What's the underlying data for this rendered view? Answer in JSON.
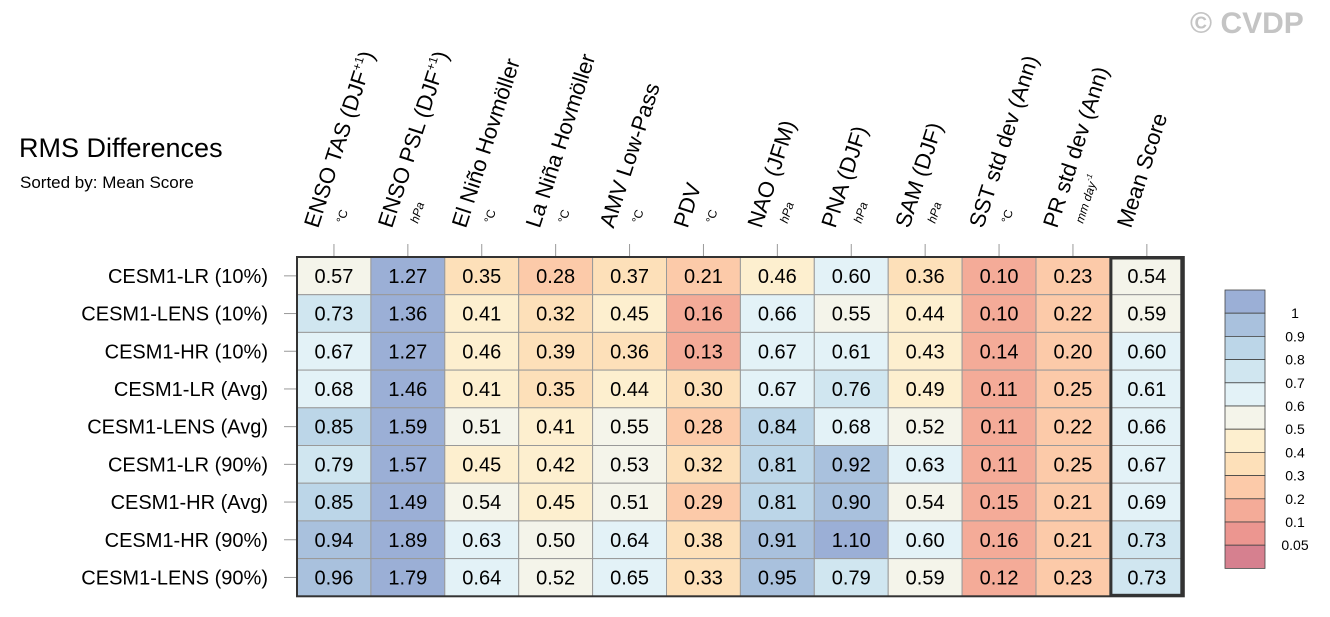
{
  "title": "RMS Differences",
  "subtitle": "Sorted by: Mean Score",
  "watermark": "© CVDP",
  "chart_data": {
    "type": "heatmap",
    "title": "RMS Differences",
    "subtitle": "Sorted by: Mean Score",
    "columns": [
      {
        "label": "ENSO TAS (DJF",
        "sup": "+1",
        "after": ")",
        "unit": "°C"
      },
      {
        "label": "ENSO PSL (DJF",
        "sup": "+1",
        "after": ")",
        "unit": "hPa"
      },
      {
        "label": "El Niño Hovmöller",
        "unit": "°C"
      },
      {
        "label": "La Niña Hovmöller",
        "unit": "°C"
      },
      {
        "label": "AMV Low-Pass",
        "unit": "°C"
      },
      {
        "label": "PDV",
        "unit": "°C"
      },
      {
        "label": "NAO (JFM)",
        "unit": "hPa"
      },
      {
        "label": "PNA (DJF)",
        "unit": "hPa"
      },
      {
        "label": "SAM (DJF)",
        "unit": "hPa"
      },
      {
        "label": "SST std dev (Ann)",
        "unit": "°C"
      },
      {
        "label": "PR std dev (Ann)",
        "unit": "mm day",
        "unit_sup": "-1"
      },
      {
        "label": "Mean Score",
        "unit": ""
      }
    ],
    "rows": [
      {
        "name": "CESM1-LR (10%)",
        "values": [
          0.57,
          1.27,
          0.35,
          0.28,
          0.37,
          0.21,
          0.46,
          0.6,
          0.36,
          0.1,
          0.23,
          0.54
        ]
      },
      {
        "name": "CESM1-LENS (10%)",
        "values": [
          0.73,
          1.36,
          0.41,
          0.32,
          0.45,
          0.16,
          0.66,
          0.55,
          0.44,
          0.1,
          0.22,
          0.59
        ]
      },
      {
        "name": "CESM1-HR (10%)",
        "values": [
          0.67,
          1.27,
          0.46,
          0.39,
          0.36,
          0.13,
          0.67,
          0.61,
          0.43,
          0.14,
          0.2,
          0.6
        ]
      },
      {
        "name": "CESM1-LR (Avg)",
        "values": [
          0.68,
          1.46,
          0.41,
          0.35,
          0.44,
          0.3,
          0.67,
          0.76,
          0.49,
          0.11,
          0.25,
          0.61
        ]
      },
      {
        "name": "CESM1-LENS (Avg)",
        "values": [
          0.85,
          1.59,
          0.51,
          0.41,
          0.55,
          0.28,
          0.84,
          0.68,
          0.52,
          0.11,
          0.22,
          0.66
        ]
      },
      {
        "name": "CESM1-LR (90%)",
        "values": [
          0.79,
          1.57,
          0.45,
          0.42,
          0.53,
          0.32,
          0.81,
          0.92,
          0.63,
          0.11,
          0.25,
          0.67
        ]
      },
      {
        "name": "CESM1-HR (Avg)",
        "values": [
          0.85,
          1.49,
          0.54,
          0.45,
          0.51,
          0.29,
          0.81,
          0.9,
          0.54,
          0.15,
          0.21,
          0.69
        ]
      },
      {
        "name": "CESM1-HR (90%)",
        "values": [
          0.94,
          1.89,
          0.63,
          0.5,
          0.64,
          0.38,
          0.91,
          1.1,
          0.6,
          0.16,
          0.21,
          0.73
        ]
      },
      {
        "name": "CESM1-LENS (90%)",
        "values": [
          0.96,
          1.79,
          0.64,
          0.52,
          0.65,
          0.33,
          0.95,
          0.79,
          0.59,
          0.12,
          0.23,
          0.73
        ]
      }
    ],
    "colorbar": {
      "levels": [
        0.05,
        0.1,
        0.2,
        0.3,
        0.4,
        0.5,
        0.6,
        0.7,
        0.8,
        0.9,
        1
      ],
      "level_labels": [
        "0.05",
        "0.1",
        "0.2",
        "0.3",
        "0.4",
        "0.5",
        "0.6",
        "0.7",
        "0.8",
        "0.9",
        "1"
      ],
      "colors": [
        "#d6808f",
        "#ec9690",
        "#f4ab98",
        "#fccaa9",
        "#fde0b9",
        "#fdefcf",
        "#f4f4ea",
        "#e3f2f7",
        "#d0e6f0",
        "#bcd6e8",
        "#a9c1dd",
        "#9bafd6"
      ]
    },
    "highlight_column": "Mean Score"
  }
}
